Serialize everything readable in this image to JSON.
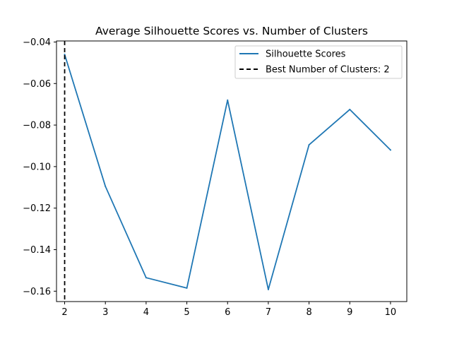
{
  "chart_data": {
    "type": "line",
    "title": "Average Silhouette Scores vs. Number of Clusters",
    "xlabel": "",
    "ylabel": "",
    "x": [
      2,
      3,
      4,
      5,
      6,
      7,
      8,
      9,
      10
    ],
    "xlim": [
      1.8,
      10.4
    ],
    "ylim": [
      -0.165,
      -0.0395
    ],
    "xticks": [
      2,
      3,
      4,
      5,
      6,
      7,
      8,
      9,
      10
    ],
    "yticks": [
      -0.16,
      -0.14,
      -0.12,
      -0.1,
      -0.08,
      -0.06,
      -0.04
    ],
    "ytick_labels": [
      "−0.16",
      "−0.14",
      "−0.12",
      "−0.10",
      "−0.08",
      "−0.06",
      "−0.04"
    ],
    "series": [
      {
        "name": "Silhouette Scores",
        "color": "#1f77b4",
        "values": [
          -0.046,
          -0.1095,
          -0.1535,
          -0.1585,
          -0.068,
          -0.1592,
          -0.0895,
          -0.0725,
          -0.092
        ]
      }
    ],
    "vline": {
      "x": 2,
      "label": "Best Number of Clusters: 2",
      "color": "#000000",
      "style": "dashed"
    },
    "grid": false,
    "legend": "top-right"
  }
}
